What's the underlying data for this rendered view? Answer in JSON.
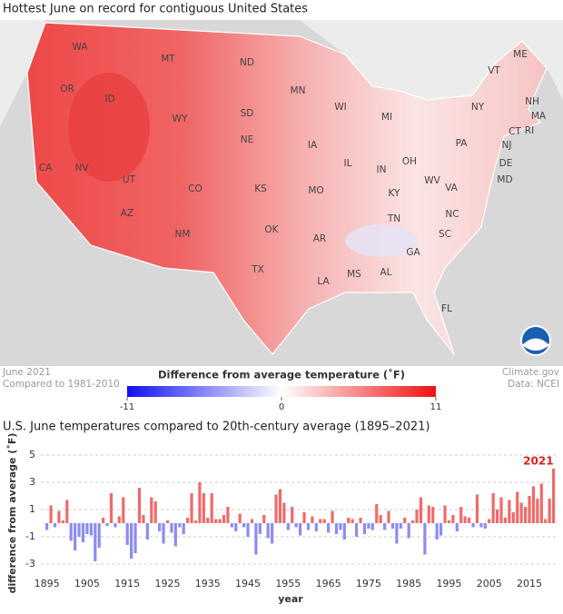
{
  "map": {
    "title": "Hottest June on record for contiguous United States",
    "state_labels": [
      "WA",
      "OR",
      "ID",
      "MT",
      "ND",
      "MN",
      "WI",
      "MI",
      "NY",
      "VT",
      "ME",
      "NH",
      "MA",
      "CT",
      "RI",
      "NJ",
      "PA",
      "DE",
      "MD",
      "OH",
      "IN",
      "IL",
      "IA",
      "NE",
      "SD",
      "WY",
      "CA",
      "NV",
      "UT",
      "CO",
      "KS",
      "MO",
      "KY",
      "WV",
      "VA",
      "NC",
      "TN",
      "SC",
      "GA",
      "AL",
      "MS",
      "AR",
      "LA",
      "TX",
      "OK",
      "NM",
      "AZ",
      "FL"
    ],
    "footnote_left": [
      "June 2021",
      "Compared to 1981-2010"
    ],
    "footnote_right": [
      "Climate.gov",
      "Data: NCEI"
    ],
    "legend": {
      "title": "Difference from average temperature (˚F)",
      "lim": [
        -11,
        11
      ],
      "ticks": [
        -11,
        0,
        11
      ],
      "colors": [
        "#1010f0",
        "#ffffff",
        "#f01010"
      ]
    }
  },
  "chart_data": {
    "type": "bar",
    "title": "U.S. June temperatures compared to 20th-century average (1895–2021)",
    "x_label": "year",
    "y_label": "difference from average (˚F)",
    "x": [
      1895,
      1896,
      1897,
      1898,
      1899,
      1900,
      1901,
      1902,
      1903,
      1904,
      1905,
      1906,
      1907,
      1908,
      1909,
      1910,
      1911,
      1912,
      1913,
      1914,
      1915,
      1916,
      1917,
      1918,
      1919,
      1920,
      1921,
      1922,
      1923,
      1924,
      1925,
      1926,
      1927,
      1928,
      1929,
      1930,
      1931,
      1932,
      1933,
      1934,
      1935,
      1936,
      1937,
      1938,
      1939,
      1940,
      1941,
      1942,
      1943,
      1944,
      1945,
      1946,
      1947,
      1948,
      1949,
      1950,
      1951,
      1952,
      1953,
      1954,
      1955,
      1956,
      1957,
      1958,
      1959,
      1960,
      1961,
      1962,
      1963,
      1964,
      1965,
      1966,
      1967,
      1968,
      1969,
      1970,
      1971,
      1972,
      1973,
      1974,
      1975,
      1976,
      1977,
      1978,
      1979,
      1980,
      1981,
      1982,
      1983,
      1984,
      1985,
      1986,
      1987,
      1988,
      1989,
      1990,
      1991,
      1992,
      1993,
      1994,
      1995,
      1996,
      1997,
      1998,
      1999,
      2000,
      2001,
      2002,
      2003,
      2004,
      2005,
      2006,
      2007,
      2008,
      2009,
      2010,
      2011,
      2012,
      2013,
      2014,
      2015,
      2016,
      2017,
      2018,
      2019,
      2020,
      2021
    ],
    "values": [
      -0.5,
      1.3,
      -0.3,
      0.9,
      0.2,
      1.7,
      -1.3,
      -2.0,
      -1.0,
      -1.4,
      -0.8,
      -0.9,
      -2.8,
      -1.8,
      0.4,
      -0.2,
      2.2,
      -0.3,
      0.5,
      1.9,
      -1.6,
      -2.6,
      -2.2,
      2.6,
      0.6,
      -1.2,
      1.9,
      1.6,
      -0.6,
      -1.5,
      0.2,
      -0.7,
      -1.7,
      -0.3,
      -0.8,
      0.4,
      2.2,
      0.2,
      3.0,
      2.2,
      0.4,
      2.2,
      0.3,
      0.3,
      0.6,
      1.2,
      -0.3,
      -0.6,
      0.7,
      -0.3,
      -1.0,
      0.3,
      -2.3,
      -0.8,
      0.6,
      -1.1,
      -1.5,
      2.1,
      2.5,
      1.5,
      -0.5,
      1.2,
      -0.3,
      -0.9,
      0.8,
      -0.5,
      0.5,
      -0.6,
      0.3,
      0.3,
      -0.7,
      0.9,
      -0.8,
      -0.5,
      -1.2,
      0.4,
      0.3,
      -1.0,
      0.4,
      -0.8,
      -0.4,
      -0.5,
      1.4,
      0.6,
      -0.5,
      0.9,
      -0.4,
      -1.5,
      -0.4,
      0.4,
      -1.1,
      0.2,
      1.0,
      1.9,
      -2.3,
      1.3,
      1.2,
      -1.2,
      -0.9,
      1.3,
      0.2,
      0.6,
      -0.6,
      1.2,
      0.5,
      0.4,
      -0.3,
      2.1,
      -0.3,
      -0.4,
      0.3,
      2.2,
      1.0,
      1.9,
      0.4,
      1.7,
      0.8,
      2.3,
      1.5,
      1.2,
      2.0,
      2.7,
      1.8,
      2.9,
      0.3,
      1.8,
      4.0
    ],
    "positive_color": "#f06a6a",
    "negative_color": "#8c8cf2",
    "xlim": [
      1893.5,
      2022
    ],
    "xticks": [
      1895,
      1905,
      1915,
      1925,
      1935,
      1945,
      1955,
      1965,
      1975,
      1985,
      1995,
      2005,
      2015
    ],
    "ylim": [
      -3.6,
      5.4
    ],
    "yticks": [
      5,
      3,
      1,
      -1,
      -3
    ],
    "grid": true,
    "annotations": [
      {
        "text": "2021",
        "x": 2021,
        "color": "#e02020"
      }
    ]
  }
}
